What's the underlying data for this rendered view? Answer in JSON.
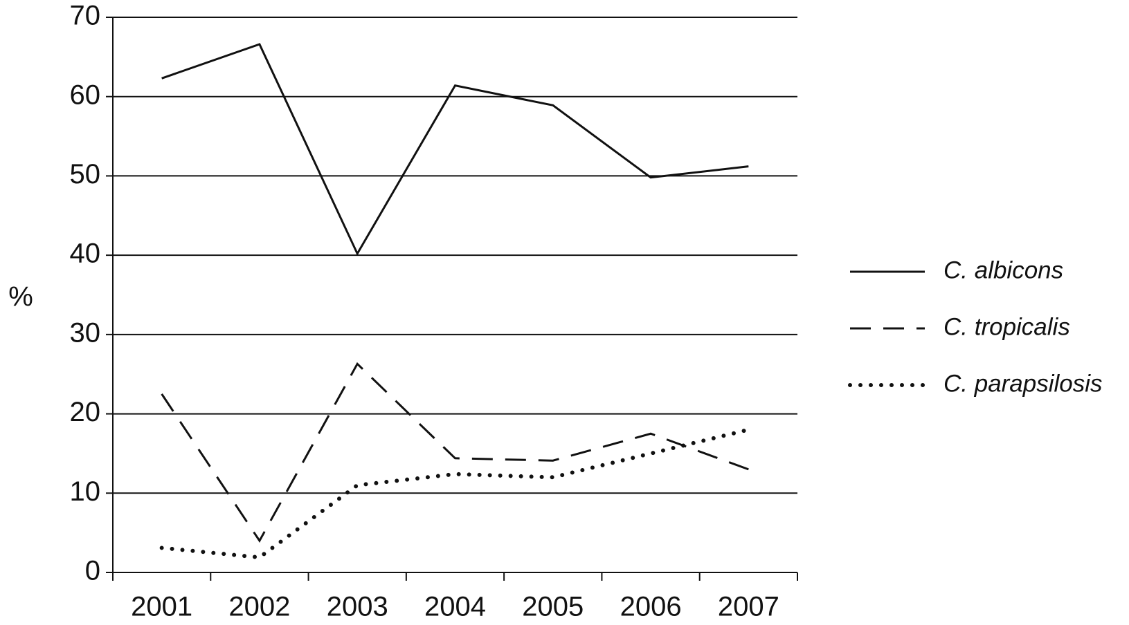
{
  "chart_data": {
    "type": "line",
    "y_label": "%",
    "categories": [
      "2001",
      "2002",
      "2003",
      "2004",
      "2005",
      "2006",
      "2007"
    ],
    "series": [
      {
        "name": "C. albicons",
        "color": "#111111",
        "style": "solid",
        "values": [
          62.3,
          66.6,
          40.2,
          61.4,
          58.9,
          49.8,
          51.2
        ]
      },
      {
        "name": "C. tropicalis",
        "color": "#111111",
        "style": "dashed",
        "values": [
          22.5,
          4,
          26.3,
          14.4,
          14.1,
          17.5,
          13
        ]
      },
      {
        "name": "C. parapsilosis",
        "color": "#111111",
        "style": "dotted",
        "values": [
          3.1,
          1.9,
          11,
          12.4,
          12,
          15,
          18
        ]
      }
    ],
    "ylim": [
      0,
      70
    ],
    "yticks": [
      0,
      10,
      20,
      30,
      40,
      50,
      60,
      70
    ],
    "grid": true,
    "legend": "right"
  }
}
